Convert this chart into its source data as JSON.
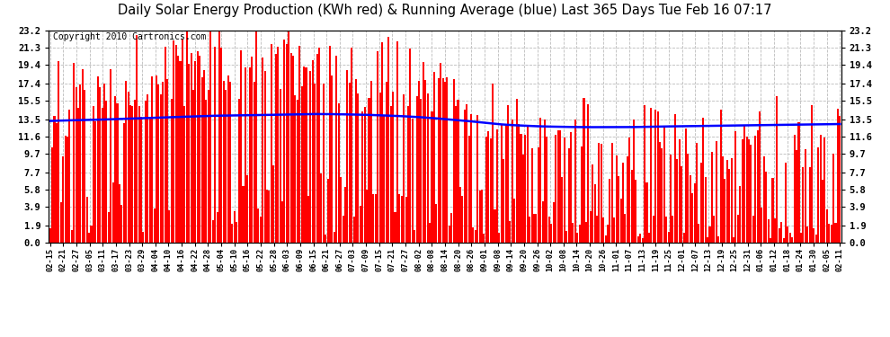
{
  "title": "Daily Solar Energy Production (KWh red) & Running Average (blue) Last 365 Days Tue Feb 16 07:17",
  "copyright": "Copyright 2010 Cartronics.com",
  "yticks": [
    0.0,
    1.9,
    3.9,
    5.8,
    7.7,
    9.7,
    11.6,
    13.5,
    15.5,
    17.4,
    19.4,
    21.3,
    23.2
  ],
  "ymax": 23.2,
  "ymin": 0.0,
  "bar_color": "#FF0000",
  "avg_color": "#0000FF",
  "background_color": "#FFFFFF",
  "grid_color": "#BBBBBB",
  "title_fontsize": 10.5,
  "copyright_fontsize": 7,
  "n_days": 365,
  "x_labels": [
    "02-15",
    "02-21",
    "02-27",
    "03-05",
    "03-11",
    "03-17",
    "03-23",
    "03-29",
    "04-04",
    "04-10",
    "04-16",
    "04-22",
    "04-28",
    "05-04",
    "05-10",
    "05-16",
    "05-22",
    "05-28",
    "06-03",
    "06-09",
    "06-15",
    "06-21",
    "06-27",
    "07-03",
    "07-09",
    "07-15",
    "07-21",
    "07-27",
    "08-02",
    "08-08",
    "08-14",
    "08-20",
    "08-26",
    "09-01",
    "09-08",
    "09-14",
    "09-20",
    "09-26",
    "10-02",
    "10-08",
    "10-14",
    "10-20",
    "10-26",
    "11-01",
    "11-07",
    "11-13",
    "11-19",
    "11-25",
    "12-01",
    "12-07",
    "12-13",
    "12-19",
    "12-25",
    "12-31",
    "01-06",
    "01-12",
    "01-18",
    "01-24",
    "01-30",
    "02-05",
    "02-11"
  ],
  "avg_line": [
    13.3,
    13.35,
    13.38,
    13.42,
    13.45,
    13.5,
    13.55,
    13.6,
    13.65,
    13.7,
    13.75,
    13.8,
    13.85,
    13.88,
    13.9,
    13.92,
    13.95,
    13.97,
    14.0,
    14.02,
    14.05,
    14.05,
    14.03,
    14.0,
    13.97,
    13.92,
    13.87,
    13.8,
    13.72,
    13.62,
    13.5,
    13.38,
    13.25,
    13.1,
    12.95,
    12.85,
    12.78,
    12.72,
    12.68,
    12.65,
    12.63,
    12.62,
    12.62,
    12.62,
    12.62,
    12.65,
    12.68,
    12.7,
    12.72,
    12.74,
    12.76,
    12.78,
    12.8,
    12.82,
    12.84,
    12.86,
    12.88,
    12.9,
    12.92,
    12.94,
    12.96
  ]
}
